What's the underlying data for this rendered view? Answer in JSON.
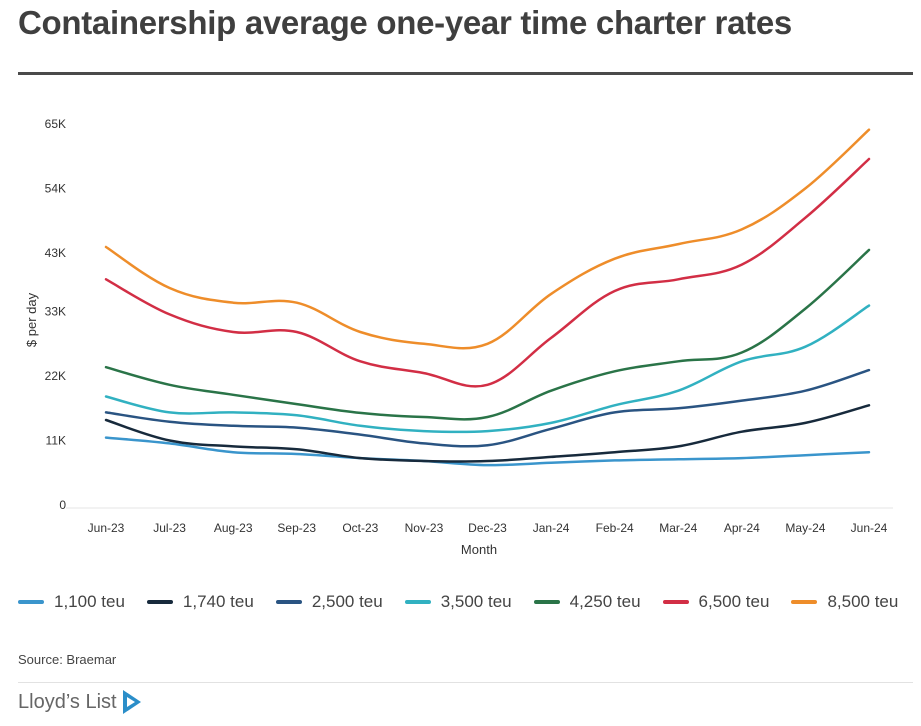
{
  "title": "Containership average one-year time charter rates",
  "source": "Source: Braemar",
  "brand": {
    "name": "Lloyd’s List",
    "logo_icon": "play-triangle-icon",
    "accent": "#2b8ec9"
  },
  "chart_data": {
    "type": "line",
    "title": "Containership average one-year time charter rates",
    "xlabel": "Month",
    "ylabel": "$ per day",
    "categories": [
      "Jun-23",
      "Jul-23",
      "Aug-23",
      "Sep-23",
      "Oct-23",
      "Nov-23",
      "Dec-23",
      "Jan-24",
      "Feb-24",
      "Mar-24",
      "Apr-24",
      "May-24",
      "Jun-24"
    ],
    "ylim": [
      0,
      66000
    ],
    "yticks": [
      0,
      11000,
      22000,
      33000,
      43000,
      54000,
      65000
    ],
    "ytick_labels": [
      "0",
      "11K",
      "22K",
      "33K",
      "43K",
      "54K",
      "65K"
    ],
    "grid": false,
    "legend": "bottom",
    "series": [
      {
        "name": "1,100 teu",
        "color": "#3a95cc",
        "values": [
          11500,
          10500,
          9000,
          8700,
          8000,
          7500,
          6800,
          7200,
          7600,
          7800,
          8000,
          8500,
          9000
        ]
      },
      {
        "name": "1,740 teu",
        "color": "#172a3c",
        "values": [
          14500,
          11000,
          10000,
          9500,
          8000,
          7500,
          7500,
          8200,
          9000,
          10000,
          12500,
          14000,
          17000
        ]
      },
      {
        "name": "2,500 teu",
        "color": "#2a5482",
        "values": [
          15800,
          14200,
          13500,
          13200,
          12000,
          10500,
          10200,
          13000,
          15800,
          16500,
          17800,
          19500,
          23000
        ]
      },
      {
        "name": "3,500 teu",
        "color": "#31b1c1",
        "values": [
          18500,
          15800,
          15800,
          15300,
          13500,
          12600,
          12600,
          14000,
          17000,
          19500,
          24500,
          27000,
          34000
        ]
      },
      {
        "name": "4,250 teu",
        "color": "#2a7448",
        "values": [
          23500,
          20500,
          18800,
          17200,
          15700,
          15000,
          15000,
          19500,
          22800,
          24500,
          26000,
          33500,
          43500
        ]
      },
      {
        "name": "6,500 teu",
        "color": "#d22e45",
        "values": [
          38500,
          32500,
          29500,
          29500,
          24500,
          22500,
          20500,
          28500,
          36500,
          38500,
          41000,
          49000,
          59000
        ]
      },
      {
        "name": "8,500 teu",
        "color": "#ee8d2a",
        "values": [
          44000,
          37000,
          34500,
          34500,
          29500,
          27500,
          27500,
          36000,
          42000,
          44500,
          47000,
          54000,
          64000
        ]
      }
    ]
  }
}
